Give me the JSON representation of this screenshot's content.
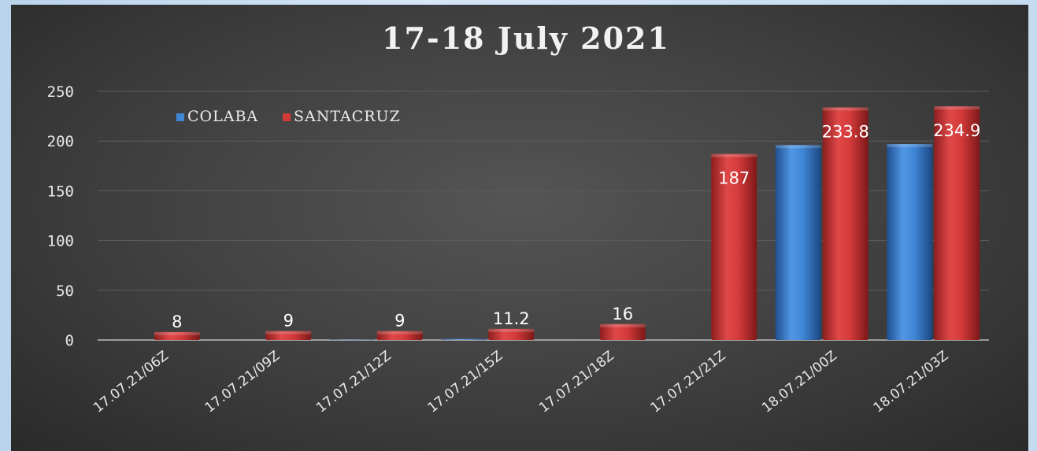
{
  "chart_data": {
    "type": "bar",
    "title": "17-18 July 2021",
    "xlabel": "",
    "ylabel": "",
    "ylim": [
      0,
      250
    ],
    "yticks": [
      0,
      50,
      100,
      150,
      200,
      250
    ],
    "grid": true,
    "legend_position": "top-left",
    "categories": [
      "17.07.21/06Z",
      "17.07.21/09Z",
      "17.07.21/12Z",
      "17.07.21/15Z",
      "17.07.21/18Z",
      "17.07.21/21Z",
      "18.07.21/00Z",
      "18.07.21/03Z"
    ],
    "series": [
      {
        "name": "COLABA",
        "color": "#3f86d6",
        "values": [
          0,
          0,
          0.5,
          1,
          0,
          0,
          196,
          197
        ],
        "labels": [
          "",
          "",
          "",
          "",
          "",
          "",
          "",
          ""
        ]
      },
      {
        "name": "SANTACRUZ",
        "color": "#d23a3a",
        "values": [
          8,
          9,
          9,
          11.2,
          16,
          187,
          233.8,
          234.9
        ],
        "labels": [
          "8",
          "9",
          "9",
          "11.2",
          "16",
          "187",
          "233.8",
          "234.9"
        ]
      }
    ]
  }
}
